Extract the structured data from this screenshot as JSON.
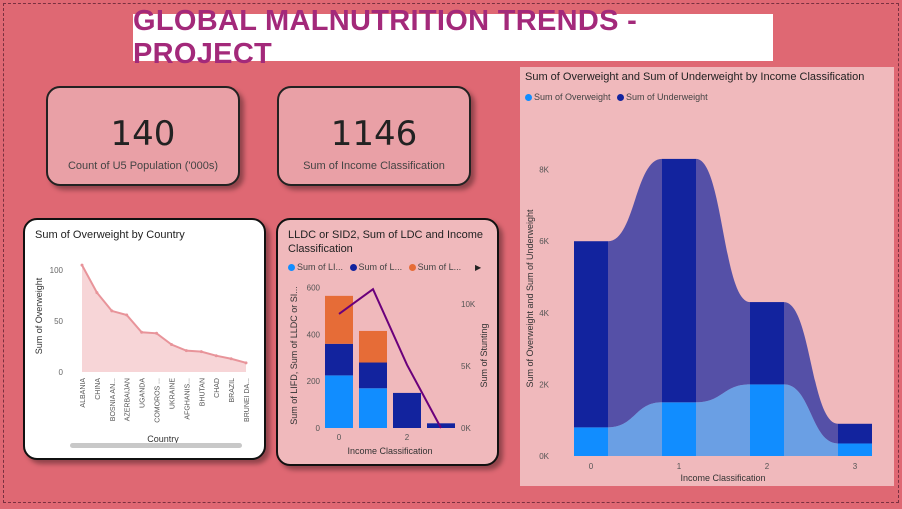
{
  "title": "GLOBAL MALNUTRITION TRENDS - PROJECT",
  "kpis": [
    {
      "value": "140",
      "label": "Count of U5 Population ('000s)"
    },
    {
      "value": "1146",
      "label": "Sum of Income Classification"
    }
  ],
  "colors": {
    "background": "#df6873",
    "title": "#a3297a",
    "overweight": "#118dff",
    "underweight": "#12239e",
    "third": "#e66c37",
    "line": "#6b007b",
    "pink_line": "#e8949a"
  },
  "chart_data": [
    {
      "type": "area",
      "title": "Sum of Overweight by Country",
      "xlabel": "Country",
      "ylabel": "Sum of Overweight",
      "categories": [
        "ALBANIA",
        "CHINA",
        "BOSNIA AN...",
        "AZERBAIJAN",
        "UGANDA",
        "COMOROS ...",
        "UKRAINE",
        "AFGHANIS...",
        "BHUTAN",
        "CHAD",
        "BRAZIL",
        "BRUNEI DA..."
      ],
      "values": [
        105,
        78,
        60,
        56,
        39,
        38,
        27,
        21,
        20,
        16,
        13,
        9
      ],
      "ylim": [
        0,
        110
      ],
      "yticks": [
        "0",
        "50",
        "100"
      ]
    },
    {
      "type": "bar",
      "title": "LLDC or SID2, Sum of LDC and Income Classification",
      "xlabel": "Income Classification",
      "ylabel": "Sum of LIFD, Sum of LLDC or SI...",
      "y2label": "Sum of Stunting",
      "categories": [
        "0",
        "1",
        "2",
        "3"
      ],
      "xticks": [
        "0",
        "",
        "2",
        ""
      ],
      "yticks": [
        "0",
        "200",
        "400",
        "600"
      ],
      "y2ticks": [
        "0K",
        "5K",
        "10K"
      ],
      "legend": [
        "Sum of LI...",
        "Sum of L...",
        "Sum of L..."
      ],
      "series": [
        {
          "values": [
            225,
            170,
            0,
            0
          ]
        },
        {
          "values": [
            135,
            110,
            150,
            20
          ]
        },
        {
          "values": [
            205,
            135,
            0,
            0
          ]
        }
      ],
      "line_values": [
        9200,
        11200,
        5100,
        0
      ],
      "ylim": [
        0,
        620
      ],
      "y2lim": [
        0,
        11700
      ]
    },
    {
      "type": "bar",
      "title": "Sum of Overweight and Sum of Underweight by Income Classification",
      "xlabel": "Income Classification",
      "ylabel": "Sum of Overweight and Sum of Underweight",
      "categories": [
        "0",
        "1",
        "2",
        "3"
      ],
      "yticks": [
        "0K",
        "2K",
        "4K",
        "6K",
        "8K"
      ],
      "legend": [
        "Sum of Overweight",
        "Sum of Underweight"
      ],
      "series": [
        {
          "name": "Sum of Overweight",
          "values": [
            800,
            1500,
            2000,
            350
          ]
        },
        {
          "name": "Sum of Underweight",
          "values": [
            5200,
            6800,
            2300,
            550
          ]
        }
      ],
      "ylim": [
        0,
        8800
      ]
    }
  ]
}
